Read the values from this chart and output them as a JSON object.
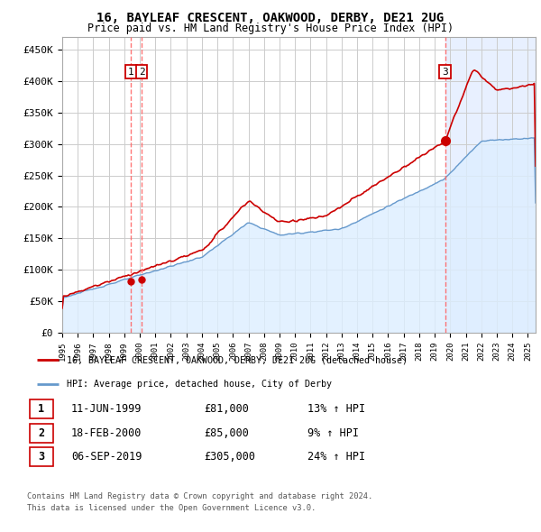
{
  "title": "16, BAYLEAF CRESCENT, OAKWOOD, DERBY, DE21 2UG",
  "subtitle": "Price paid vs. HM Land Registry's House Price Index (HPI)",
  "ylabel_ticks": [
    "£0",
    "£50K",
    "£100K",
    "£150K",
    "£200K",
    "£250K",
    "£300K",
    "£350K",
    "£400K",
    "£450K"
  ],
  "ytick_values": [
    0,
    50000,
    100000,
    150000,
    200000,
    250000,
    300000,
    350000,
    400000,
    450000
  ],
  "ylim": [
    0,
    470000
  ],
  "xlim_start": 1995.0,
  "xlim_end": 2025.5,
  "xticks": [
    1995,
    1996,
    1997,
    1998,
    1999,
    2000,
    2001,
    2002,
    2003,
    2004,
    2005,
    2006,
    2007,
    2008,
    2009,
    2010,
    2011,
    2012,
    2013,
    2014,
    2015,
    2016,
    2017,
    2018,
    2019,
    2020,
    2021,
    2022,
    2023,
    2024,
    2025
  ],
  "grid_color": "#cccccc",
  "background_color": "#ffffff",
  "hpi_line_color": "#6699cc",
  "hpi_fill_color": "#ddeeff",
  "price_color": "#cc0000",
  "vline_color": "#ff6666",
  "sale1_x": 1999.44,
  "sale1_y": 81000,
  "sale2_x": 2000.12,
  "sale2_y": 85000,
  "sale3_x": 2019.67,
  "sale3_y": 305000,
  "post_sale3_bg": "#e8f0ff",
  "legend_line1": "16, BAYLEAF CRESCENT, OAKWOOD, DERBY, DE21 2UG (detached house)",
  "legend_line2": "HPI: Average price, detached house, City of Derby",
  "table_rows": [
    {
      "num": "1",
      "date": "11-JUN-1999",
      "price": "£81,000",
      "hpi": "13% ↑ HPI"
    },
    {
      "num": "2",
      "date": "18-FEB-2000",
      "price": "£85,000",
      "hpi": "9% ↑ HPI"
    },
    {
      "num": "3",
      "date": "06-SEP-2019",
      "price": "£305,000",
      "hpi": "24% ↑ HPI"
    }
  ],
  "footnote1": "Contains HM Land Registry data © Crown copyright and database right 2024.",
  "footnote2": "This data is licensed under the Open Government Licence v3.0."
}
